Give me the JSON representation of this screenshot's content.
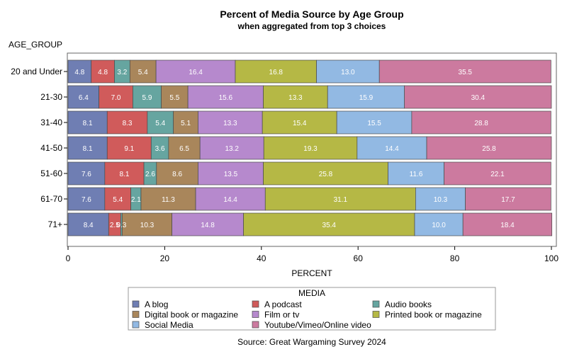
{
  "chart_data": {
    "type": "bar",
    "orientation": "horizontal",
    "stacked": true,
    "title": "Percent of Media Source by Age Group",
    "subtitle": "when aggregated from top 3 choices",
    "ylabel": "AGE_GROUP",
    "xlabel": "PERCENT",
    "xlim": [
      0,
      100
    ],
    "xticks": [
      0,
      20,
      40,
      60,
      80,
      100
    ],
    "categories": [
      "20 and Under",
      "21-30",
      "31-40",
      "41-50",
      "51-60",
      "61-70",
      "71+"
    ],
    "series": [
      {
        "name": "A blog",
        "color": "#6f7eb3",
        "values": [
          4.8,
          6.4,
          8.1,
          8.1,
          7.6,
          7.6,
          8.4
        ],
        "labels": [
          "4.8",
          "6.4",
          "8.1",
          "8.1",
          "7.6",
          "7.6",
          "8.4"
        ]
      },
      {
        "name": "A podcast",
        "color": "#d05b5b",
        "values": [
          4.8,
          7.0,
          8.3,
          9.1,
          8.1,
          5.4,
          2.5
        ],
        "labels": [
          "4.8",
          "7.0",
          "8.3",
          "9.1",
          "8.1",
          "5.4",
          "2.5"
        ]
      },
      {
        "name": "Audio books",
        "color": "#66a5a0",
        "values": [
          3.2,
          5.9,
          5.4,
          3.6,
          2.6,
          2.1,
          0.3
        ],
        "labels": [
          "3.2",
          "5.9",
          "5.4",
          "3.6",
          "2.6",
          "2.1",
          "0.3"
        ]
      },
      {
        "name": "Digital book or magazine",
        "color": "#a9865b",
        "values": [
          5.4,
          5.5,
          5.1,
          6.5,
          8.6,
          11.3,
          10.3
        ],
        "labels": [
          "5.4",
          "5.5",
          "5.1",
          "6.5",
          "8.6",
          "11.3",
          "10.3"
        ]
      },
      {
        "name": "Film or tv",
        "color": "#b689cd",
        "values": [
          16.4,
          15.6,
          13.3,
          13.2,
          13.5,
          14.4,
          14.8
        ],
        "labels": [
          "16.4",
          "15.6",
          "13.3",
          "13.2",
          "13.5",
          "14.4",
          "14.8"
        ]
      },
      {
        "name": "Printed book or magazine",
        "color": "#b5b845",
        "values": [
          16.8,
          13.3,
          15.4,
          19.3,
          25.8,
          31.1,
          35.4
        ],
        "labels": [
          "16.8",
          "13.3",
          "15.4",
          "19.3",
          "25.8",
          "31.1",
          "35.4"
        ]
      },
      {
        "name": "Social Media",
        "color": "#92b9e3",
        "values": [
          13.0,
          15.9,
          15.5,
          14.4,
          11.6,
          10.3,
          10.0
        ],
        "labels": [
          "13.0",
          "15.9",
          "15.5",
          "14.4",
          "11.6",
          "10.3",
          "10.0"
        ]
      },
      {
        "name": "Youtube/Vimeo/Online video",
        "color": "#cc7a9f",
        "values": [
          35.5,
          30.4,
          28.8,
          25.8,
          22.1,
          17.7,
          18.4
        ],
        "labels": [
          "35.5",
          "30.4",
          "28.8",
          "25.8",
          "22.1",
          "17.7",
          "18.4"
        ]
      }
    ],
    "legend": {
      "title": "MEDIA",
      "placement": "bottom",
      "items": [
        "A blog",
        "A podcast",
        "Audio books",
        "Digital book or magazine",
        "Film or tv",
        "Printed book or magazine",
        "Social Media",
        "Youtube/Vimeo/Online video"
      ]
    },
    "footnote": "Source:  Great Wargaming Survey 2024"
  }
}
